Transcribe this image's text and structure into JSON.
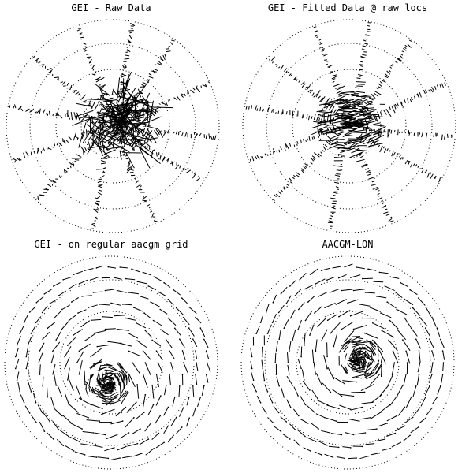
{
  "figure": {
    "background": "#ffffff",
    "ink": "#000000"
  },
  "chart_data": [
    {
      "type": "scatter",
      "title": "GEI - Raw Data",
      "rings": 4,
      "layout": "radial beams of vectors",
      "beam_angles_deg": [
        -170,
        -140,
        -110,
        -80,
        -55,
        -25,
        5,
        30,
        65,
        100,
        135,
        160
      ],
      "grid": "dotted circles",
      "vectors": "black line segments"
    },
    {
      "type": "scatter",
      "title": "GEI - Fitted Data @ raw locs",
      "rings": 4,
      "layout": "radial beams of vectors",
      "beam_angles_deg": [
        -170,
        -140,
        -110,
        -80,
        -55,
        -25,
        5,
        30,
        65,
        100,
        135,
        160
      ],
      "grid": "dotted circles",
      "vectors": "black line segments"
    },
    {
      "type": "scatter",
      "title": "GEI - on regular aacgm grid",
      "rings": 3,
      "layout": "regular polar grid of vectors",
      "grid_radii_fraction": [
        0.2,
        0.32,
        0.44,
        0.56,
        0.68,
        0.8,
        0.9
      ],
      "vortex_offset": "lower-center",
      "grid": "dotted circles",
      "vectors": "black line segments"
    },
    {
      "type": "scatter",
      "title": "AACGM-LON",
      "rings": 3,
      "layout": "regular polar grid of vectors",
      "grid_radii_fraction": [
        0.2,
        0.32,
        0.44,
        0.56,
        0.68,
        0.8,
        0.9
      ],
      "vortex_offset": "center-right",
      "grid": "dotted circles",
      "vectors": "black line segments"
    }
  ]
}
